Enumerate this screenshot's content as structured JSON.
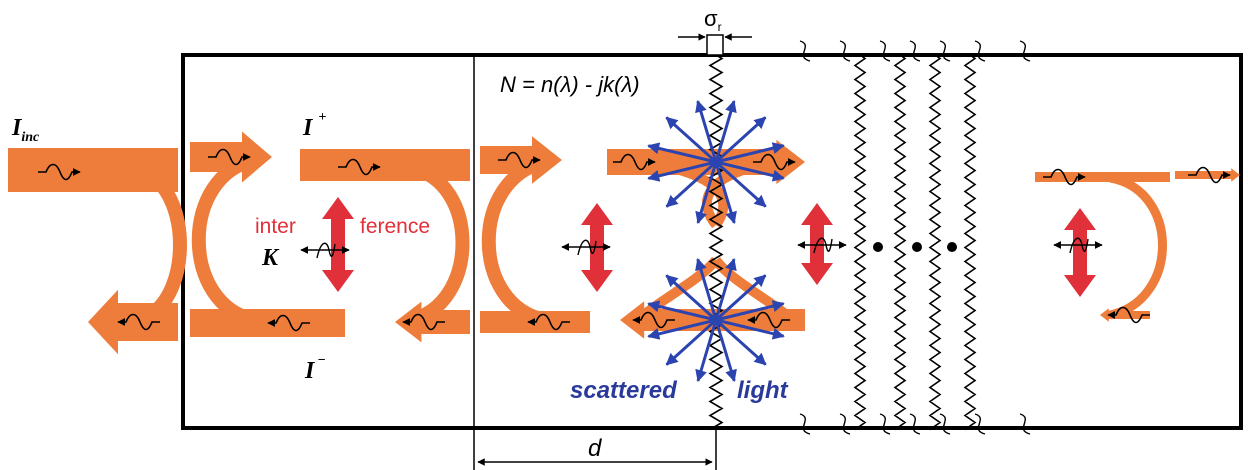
{
  "labels": {
    "incident": {
      "symbol": "I",
      "subscript": "inc"
    },
    "forward": {
      "symbol": "I",
      "superscript": "+"
    },
    "backward": {
      "symbol": "I",
      "superscript": "−"
    },
    "interference": [
      "inter",
      "ference"
    ],
    "coupling": "K",
    "refractive_index": "N = n(λ) - jk(λ)",
    "roughness": {
      "symbol": "σ",
      "subscript": "r"
    },
    "scattered_light": [
      "scattered",
      "light"
    ],
    "thickness": "d"
  }
}
